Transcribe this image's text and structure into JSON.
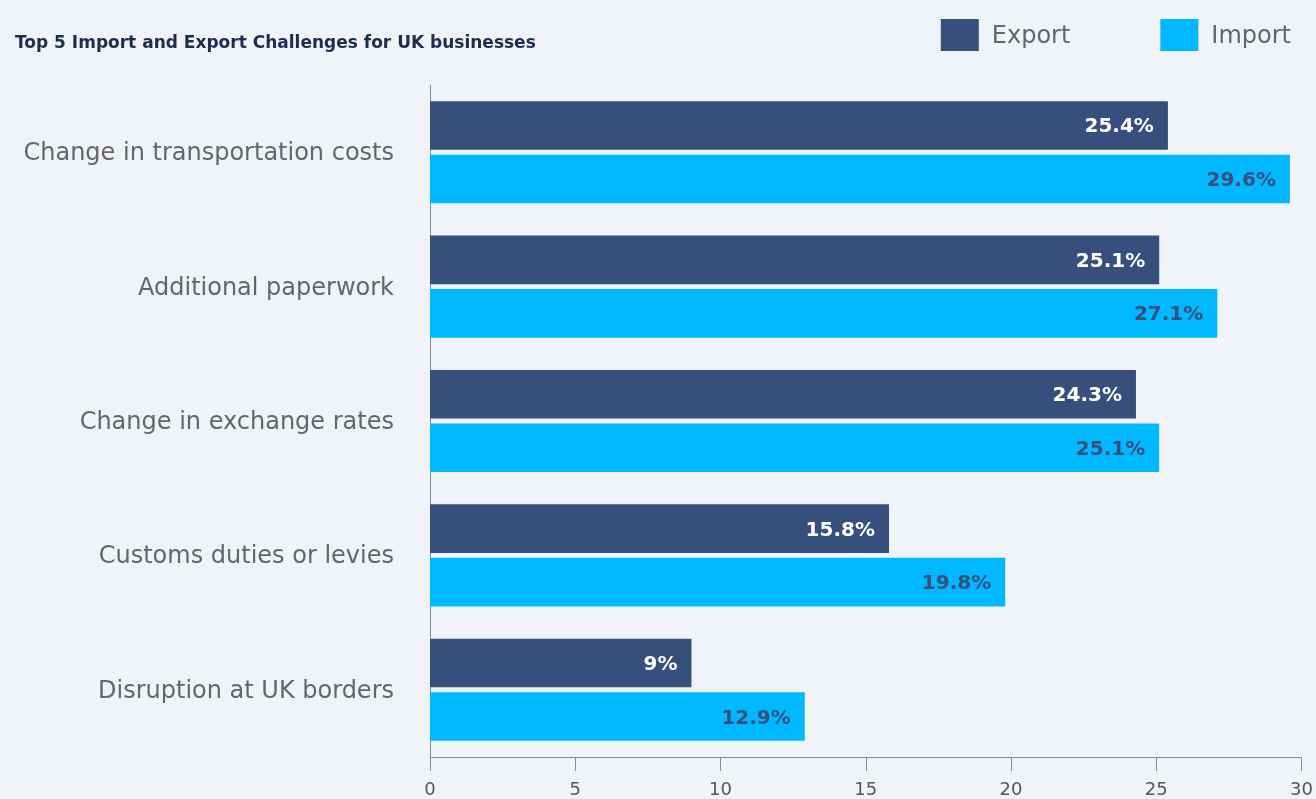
{
  "chart_data": {
    "type": "bar",
    "orientation": "horizontal",
    "title": "Top 5 Import and Export Challenges for UK businesses",
    "categories": [
      "Change in transportation costs",
      "Additional paperwork",
      "Change in exchange rates",
      "Customs duties or levies",
      "Disruption at UK borders"
    ],
    "series": [
      {
        "name": "Export",
        "color": "#364f7c",
        "values": [
          25.4,
          25.1,
          24.3,
          15.8,
          9
        ],
        "value_labels": [
          "25.4%",
          "25.1%",
          "24.3%",
          "15.8%",
          "9%"
        ]
      },
      {
        "name": "Import",
        "color": "#00b8ff",
        "values": [
          29.6,
          27.1,
          25.1,
          19.8,
          12.9
        ],
        "value_labels": [
          "29.6%",
          "27.1%",
          "25.1%",
          "19.8%",
          "12.9%"
        ]
      }
    ],
    "xlim": [
      0,
      30
    ],
    "xticks": [
      0,
      5,
      10,
      15,
      20,
      25,
      30
    ],
    "grid": false,
    "legend": "top right"
  }
}
